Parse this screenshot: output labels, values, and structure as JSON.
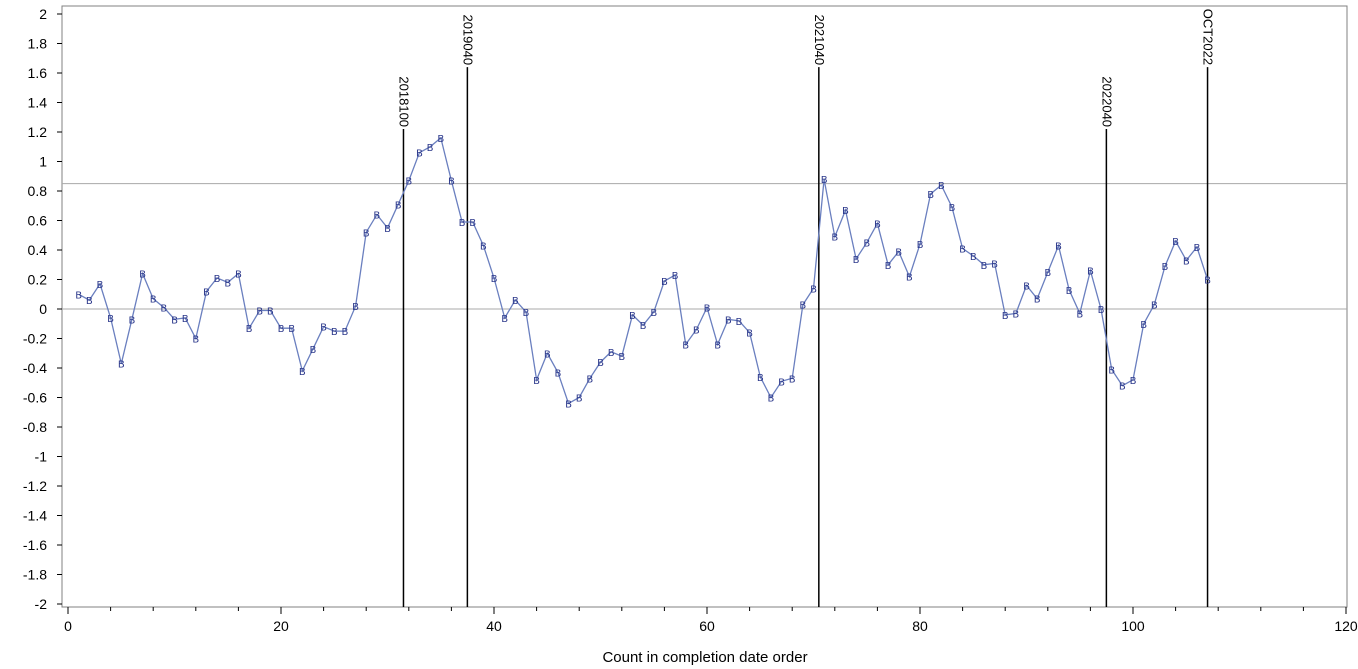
{
  "chart_data": {
    "type": "line",
    "title": "",
    "xlabel": "Count in  completion date order",
    "ylabel": "",
    "xlim": [
      0,
      120
    ],
    "ylim": [
      -2,
      2
    ],
    "x_ticks": [
      0,
      20,
      40,
      60,
      80,
      100,
      120
    ],
    "y_ticks": [
      2,
      1.8,
      1.6,
      1.4,
      1.2,
      1,
      0.8,
      0.6,
      0.4,
      0.2,
      0,
      -0.2,
      -0.4,
      -0.6,
      -0.8,
      -1,
      -1.2,
      -1.4,
      -1.6,
      -1.8,
      -2
    ],
    "series": [
      {
        "marker_label": "B",
        "color": "#6a7fbf",
        "marker_color": "#2e3a8c",
        "x": [
          1,
          2,
          3,
          4,
          5,
          6,
          7,
          8,
          9,
          10,
          11,
          12,
          13,
          14,
          15,
          16,
          17,
          18,
          19,
          20,
          21,
          22,
          23,
          24,
          25,
          26,
          27,
          28,
          29,
          30,
          31,
          32,
          33,
          34,
          35,
          36,
          37,
          38,
          39,
          40,
          41,
          42,
          43,
          44,
          45,
          46,
          47,
          48,
          49,
          50,
          51,
          52,
          53,
          54,
          55,
          56,
          57,
          58,
          59,
          60,
          61,
          62,
          63,
          64,
          65,
          66,
          67,
          68,
          69,
          70,
          71,
          72,
          73,
          74,
          75,
          76,
          77,
          78,
          79,
          80,
          81,
          82,
          83,
          84,
          85,
          86,
          87,
          88,
          89,
          90,
          91,
          92,
          93,
          94,
          95,
          96,
          97,
          98,
          99,
          100,
          101,
          102,
          103,
          104,
          105,
          106,
          107
        ],
        "y": [
          0.1,
          0.06,
          0.17,
          -0.06,
          -0.37,
          -0.07,
          0.24,
          0.07,
          0.01,
          -0.07,
          -0.06,
          -0.2,
          0.12,
          0.21,
          0.18,
          0.24,
          -0.13,
          -0.01,
          -0.01,
          -0.13,
          -0.13,
          -0.42,
          -0.27,
          -0.12,
          -0.15,
          -0.15,
          0.02,
          0.52,
          0.64,
          0.55,
          0.71,
          0.87,
          1.06,
          1.1,
          1.16,
          0.87,
          0.59,
          0.59,
          0.43,
          0.21,
          -0.06,
          0.06,
          -0.02,
          -0.48,
          -0.3,
          -0.43,
          -0.64,
          -0.6,
          -0.47,
          -0.36,
          -0.29,
          -0.32,
          -0.04,
          -0.11,
          -0.02,
          0.19,
          0.23,
          -0.24,
          -0.14,
          0.01,
          -0.24,
          -0.07,
          -0.08,
          -0.16,
          -0.46,
          -0.6,
          -0.49,
          -0.47,
          0.03,
          0.14,
          0.88,
          0.49,
          0.67,
          0.34,
          0.45,
          0.58,
          0.3,
          0.39,
          0.22,
          0.44,
          0.78,
          0.84,
          0.69,
          0.41,
          0.36,
          0.3,
          0.31,
          -0.04,
          -0.03,
          0.16,
          0.07,
          0.25,
          0.43,
          0.13,
          -0.03,
          0.26,
          0.0,
          -0.41,
          -0.52,
          -0.48,
          -0.1,
          0.03,
          0.29,
          0.46,
          0.33,
          0.42,
          0.2
        ]
      }
    ],
    "horizontal_refs": [
      0,
      0.85
    ],
    "vertical_refs": [
      {
        "x": 31.5,
        "y_top": 1.22,
        "label": "2018100"
      },
      {
        "x": 37.5,
        "y_top": 1.64,
        "label": "2019040"
      },
      {
        "x": 70.5,
        "y_top": 1.64,
        "label": "2021040"
      },
      {
        "x": 97.5,
        "y_top": 1.22,
        "label": "2022040"
      },
      {
        "x": 107,
        "y_top": 1.64,
        "label": "OCT2022"
      }
    ],
    "grid": false,
    "legend": "none"
  }
}
